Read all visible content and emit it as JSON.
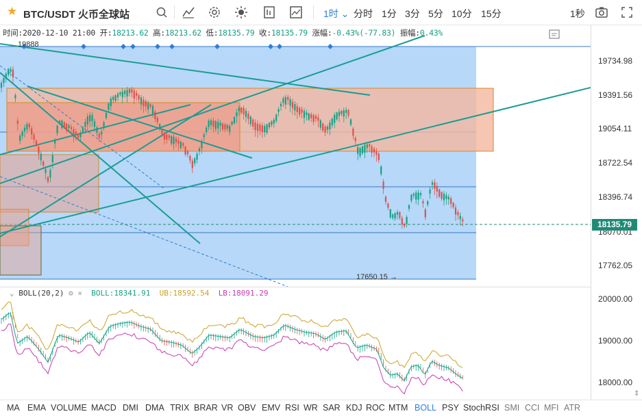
{
  "header": {
    "symbol": "BTC/USDT 火币全球站",
    "timeframes": [
      "1时",
      "分时",
      "1分",
      "3分",
      "5分",
      "10分",
      "15分"
    ],
    "timeframe_active": "1时",
    "interval_right": "1秒"
  },
  "info": {
    "time_label": "时间:",
    "time": "2020-12-10 21:00",
    "open_label": "开:",
    "open": "18213.62",
    "high_label": "高:",
    "high": "18213.62",
    "low_label": "低:",
    "low": "18135.79",
    "close_label": "收:",
    "close": "18135.79",
    "change_label": "涨幅:",
    "change": "-0.43%(-77.83)",
    "amp_label": "振幅:",
    "amp": "0.43%"
  },
  "price_axis": [
    "19734.98",
    "19391.56",
    "19054.11",
    "18722.54",
    "18396.74",
    "18070.01",
    "17762.05"
  ],
  "current_price": "18135.79",
  "marker_top": "19888",
  "low_marker": "17650.15",
  "boll": {
    "label": "BOLL(20,2)",
    "boll": "BOLL:18341.91",
    "ub": "UB:18592.54",
    "lb": "LB:18091.29"
  },
  "sub_axis": [
    "20000.00",
    "19000.00",
    "18000.00"
  ],
  "indicators": [
    "MA",
    "EMA",
    "VOLUME",
    "MACD",
    "DMI",
    "DMA",
    "TRIX",
    "BRAR",
    "VR",
    "OBV",
    "EMV",
    "RSI",
    "WR",
    "SAR",
    "KDJ",
    "ROC",
    "MTM",
    "BOLL",
    "PSY",
    "StochRSI",
    "SMI",
    "CCI",
    "MFI",
    "ATR"
  ],
  "indicator_active": "BOLL",
  "colors": {
    "accent": "#2f7fd8",
    "up": "#16a085",
    "down": "#e0504a",
    "current_price_bg": "#1f8b77",
    "selection_fill": "#aad1f7",
    "box_fill": "#f4b8a0"
  }
}
